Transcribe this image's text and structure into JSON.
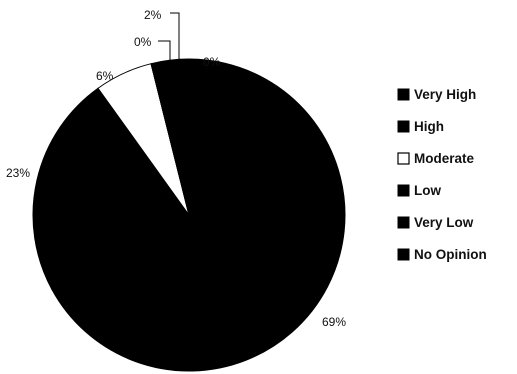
{
  "chart_data": {
    "type": "pie",
    "categories": [
      "Very High",
      "High",
      "Moderate",
      "Low",
      "Very Low",
      "No Opinion"
    ],
    "values": [
      69,
      23,
      6,
      0,
      2,
      0
    ],
    "value_labels": [
      "69%",
      "23%",
      "6%",
      "0%",
      "2%",
      "0%"
    ],
    "colors": [
      "#000000",
      "#000000",
      "#ffffff",
      "#000000",
      "#000000",
      "#000000"
    ],
    "legend_placement": "right"
  }
}
